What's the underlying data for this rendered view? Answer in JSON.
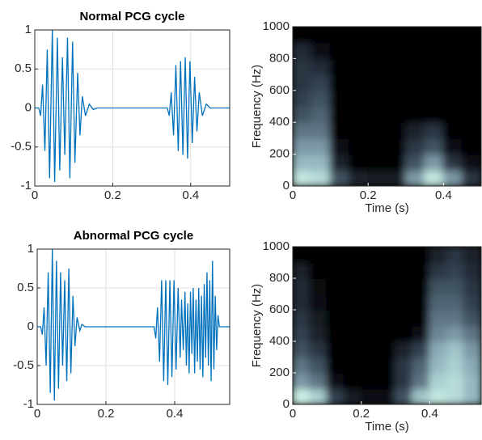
{
  "chart_data": [
    {
      "type": "line",
      "title": "Normal PCG cycle",
      "color": "#0072bd",
      "grid": true,
      "xlim": [
        0,
        0.5
      ],
      "xticks": [
        0,
        0.2,
        0.4
      ],
      "ylim": [
        -1,
        1
      ],
      "yticks": [
        -1,
        -0.5,
        0,
        0.5,
        1
      ],
      "x": [
        0,
        0.01,
        0.015,
        0.02,
        0.026,
        0.032,
        0.038,
        0.045,
        0.051,
        0.058,
        0.064,
        0.071,
        0.077,
        0.084,
        0.09,
        0.097,
        0.103,
        0.11,
        0.116,
        0.122,
        0.13,
        0.14,
        0.15,
        0.16,
        0.34,
        0.345,
        0.35,
        0.356,
        0.362,
        0.368,
        0.374,
        0.38,
        0.386,
        0.392,
        0.398,
        0.404,
        0.41,
        0.416,
        0.422,
        0.43,
        0.44,
        0.45,
        0.5
      ],
      "values": [
        0,
        0,
        -0.1,
        0.3,
        -0.55,
        0.75,
        -0.9,
        1.0,
        -0.95,
        0.9,
        -0.8,
        0.65,
        -0.6,
        0.9,
        -0.9,
        0.85,
        -0.7,
        0.45,
        -0.35,
        0.15,
        -0.1,
        0.05,
        -0.02,
        0,
        0,
        -0.1,
        0.2,
        -0.35,
        0.55,
        -0.55,
        0.6,
        -0.6,
        0.65,
        -0.65,
        0.6,
        -0.45,
        0.4,
        -0.3,
        0.2,
        -0.1,
        0.05,
        0,
        0
      ]
    },
    {
      "type": "heatmap",
      "xlabel": "Time (s)",
      "ylabel": "Frequency (Hz)",
      "xlim": [
        0,
        0.5
      ],
      "xticks": [
        0,
        0.2,
        0.4
      ],
      "ylim": [
        0,
        1000
      ],
      "yticks": [
        0,
        200,
        400,
        600,
        800,
        1000
      ],
      "colormap": [
        "#000000",
        "#2e3a4a",
        "#8fb0bc",
        "#d8fff0"
      ],
      "x": [
        0.025,
        0.075,
        0.125,
        0.175,
        0.225,
        0.275,
        0.325,
        0.375,
        0.425,
        0.475
      ],
      "y": [
        50,
        150,
        250,
        350,
        450,
        550,
        650,
        750,
        850,
        950
      ],
      "z": [
        [
          0.9,
          0.85,
          0.4,
          0.2,
          0.15,
          0.15,
          0.6,
          0.9,
          0.6,
          0.3
        ],
        [
          0.7,
          0.7,
          0.2,
          0,
          0,
          0,
          0.4,
          0.6,
          0.3,
          0.1
        ],
        [
          0.6,
          0.6,
          0.1,
          0,
          0,
          0,
          0.3,
          0.4,
          0.1,
          0
        ],
        [
          0.5,
          0.5,
          0,
          0,
          0,
          0,
          0.2,
          0.3,
          0,
          0
        ],
        [
          0.4,
          0.45,
          0,
          0,
          0,
          0,
          0,
          0,
          0,
          0
        ],
        [
          0.35,
          0.4,
          0,
          0,
          0,
          0,
          0,
          0,
          0,
          0
        ],
        [
          0.3,
          0.35,
          0,
          0,
          0,
          0,
          0,
          0,
          0,
          0
        ],
        [
          0.3,
          0.25,
          0,
          0,
          0,
          0,
          0,
          0,
          0,
          0
        ],
        [
          0.25,
          0.1,
          0,
          0,
          0,
          0,
          0,
          0,
          0,
          0
        ],
        [
          0,
          0,
          0,
          0,
          0,
          0,
          0,
          0,
          0,
          0
        ]
      ]
    },
    {
      "type": "line",
      "title": "Abnormal PCG cycle",
      "color": "#0072bd",
      "grid": true,
      "xlim": [
        0,
        0.56
      ],
      "xticks": [
        0,
        0.2,
        0.4
      ],
      "ylim": [
        -1,
        1
      ],
      "yticks": [
        -1,
        -0.5,
        0,
        0.5,
        1
      ],
      "x": [
        0,
        0.01,
        0.015,
        0.02,
        0.026,
        0.032,
        0.038,
        0.044,
        0.05,
        0.056,
        0.062,
        0.068,
        0.074,
        0.08,
        0.086,
        0.092,
        0.098,
        0.104,
        0.11,
        0.116,
        0.124,
        0.13,
        0.14,
        0.34,
        0.345,
        0.35,
        0.356,
        0.362,
        0.368,
        0.374,
        0.38,
        0.386,
        0.392,
        0.398,
        0.404,
        0.41,
        0.416,
        0.42,
        0.425,
        0.43,
        0.434,
        0.438,
        0.442,
        0.446,
        0.45,
        0.454,
        0.458,
        0.462,
        0.466,
        0.47,
        0.474,
        0.478,
        0.482,
        0.486,
        0.49,
        0.494,
        0.498,
        0.502,
        0.506,
        0.51,
        0.514,
        0.518,
        0.522,
        0.526,
        0.53,
        0.56
      ],
      "values": [
        0,
        0,
        -0.1,
        0.25,
        -0.5,
        0.7,
        -0.85,
        1.0,
        -0.95,
        0.85,
        -0.8,
        0.7,
        -0.5,
        0.6,
        -0.7,
        0.75,
        -0.6,
        0.4,
        -0.25,
        0.12,
        -0.05,
        0.03,
        0,
        0,
        -0.15,
        0.25,
        -0.45,
        0.6,
        -0.7,
        0.6,
        -0.75,
        0.6,
        -0.65,
        0.6,
        -0.55,
        0.5,
        -0.4,
        0.35,
        -0.3,
        0.45,
        -0.5,
        0.3,
        -0.6,
        0.45,
        -0.35,
        0.5,
        -0.6,
        0.35,
        -0.45,
        0.5,
        -0.55,
        0.4,
        -0.65,
        0.55,
        -0.4,
        0.7,
        -0.5,
        0.6,
        -0.7,
        0.85,
        -0.55,
        0.4,
        -0.3,
        0.15,
        0,
        0
      ]
    },
    {
      "type": "heatmap",
      "xlabel": "Time (s)",
      "ylabel": "Frequency (Hz)",
      "xlim": [
        0,
        0.55
      ],
      "xticks": [
        0,
        0.2,
        0.4
      ],
      "ylim": [
        0,
        1000
      ],
      "yticks": [
        0,
        200,
        400,
        600,
        800,
        1000
      ],
      "colormap": [
        "#000000",
        "#2e3a4a",
        "#8fb0bc",
        "#d8fff0"
      ],
      "x": [
        0.025,
        0.075,
        0.125,
        0.175,
        0.225,
        0.275,
        0.325,
        0.375,
        0.425,
        0.475,
        0.525
      ],
      "y": [
        50,
        150,
        250,
        350,
        450,
        550,
        650,
        750,
        850,
        950
      ],
      "z": [
        [
          0.95,
          0.8,
          0.35,
          0.15,
          0.1,
          0.1,
          0.4,
          0.75,
          0.9,
          0.85,
          0.7
        ],
        [
          0.6,
          0.5,
          0.1,
          0,
          0,
          0,
          0.3,
          0.5,
          0.8,
          0.85,
          0.7
        ],
        [
          0.5,
          0.4,
          0,
          0,
          0,
          0,
          0.3,
          0.45,
          0.7,
          0.8,
          0.65
        ],
        [
          0.4,
          0.3,
          0,
          0,
          0,
          0,
          0.2,
          0.35,
          0.65,
          0.75,
          0.6
        ],
        [
          0.35,
          0.2,
          0,
          0,
          0,
          0,
          0,
          0.1,
          0.55,
          0.6,
          0.5
        ],
        [
          0.3,
          0.15,
          0,
          0,
          0,
          0,
          0,
          0,
          0.5,
          0.5,
          0.4
        ],
        [
          0.25,
          0.1,
          0,
          0,
          0,
          0,
          0,
          0,
          0.45,
          0.45,
          0.35
        ],
        [
          0.25,
          0.05,
          0,
          0,
          0,
          0,
          0,
          0,
          0.4,
          0.4,
          0.3
        ],
        [
          0.2,
          0,
          0,
          0,
          0,
          0,
          0,
          0,
          0.3,
          0.35,
          0.25
        ],
        [
          0,
          0,
          0,
          0,
          0,
          0,
          0,
          0,
          0.2,
          0.3,
          0.2
        ]
      ]
    }
  ]
}
